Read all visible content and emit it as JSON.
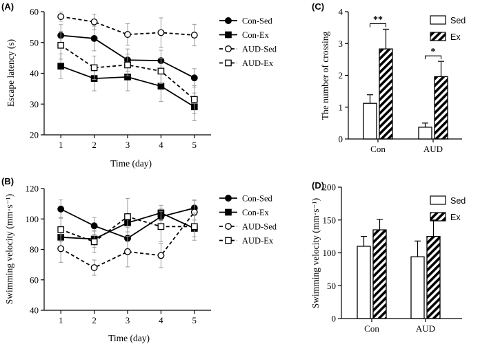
{
  "chart_data": [
    {
      "id": "A",
      "type": "line",
      "panel_label": "(A)",
      "xlabel": "Time (day)",
      "ylabel": "Escape latency (s)",
      "x": [
        1,
        2,
        3,
        4,
        5
      ],
      "xlim": [
        0.5,
        5.5
      ],
      "ylim": [
        20,
        60
      ],
      "yticks": [
        20,
        30,
        40,
        50,
        60
      ],
      "legend_position": "right",
      "series": [
        {
          "name": "Con-Sed",
          "values": [
            52.3,
            51.3,
            44.3,
            44.1,
            38.5
          ],
          "errors": [
            3.5,
            4.0,
            3.6,
            3.4,
            3.0
          ],
          "marker": "filled-circle",
          "line": "solid"
        },
        {
          "name": "Con-Ex",
          "values": [
            42.3,
            38.3,
            38.8,
            35.8,
            29.1
          ],
          "errors": [
            4.0,
            4.0,
            4.5,
            5.0,
            4.5
          ],
          "marker": "filled-square",
          "line": "solid"
        },
        {
          "name": "AUD-Sed",
          "values": [
            58.4,
            56.7,
            52.6,
            53.2,
            52.4
          ],
          "errors": [
            1.5,
            2.5,
            3.5,
            4.8,
            3.5
          ],
          "marker": "open-circle",
          "line": "dashed"
        },
        {
          "name": "AUD-Ex",
          "values": [
            49.1,
            41.8,
            42.7,
            40.7,
            31.5
          ],
          "errors": [
            4.5,
            3.8,
            3.5,
            4.0,
            4.5
          ],
          "marker": "open-square",
          "line": "dashed"
        }
      ]
    },
    {
      "id": "B",
      "type": "line",
      "panel_label": "(B)",
      "xlabel": "Time (day)",
      "ylabel": "Swimming velocity (mm·s⁻¹)",
      "x": [
        1,
        2,
        3,
        4,
        5
      ],
      "xlim": [
        0.5,
        5.5
      ],
      "ylim": [
        40,
        120
      ],
      "yticks": [
        40,
        60,
        80,
        100,
        120
      ],
      "legend_position": "right",
      "series": [
        {
          "name": "Con-Sed",
          "values": [
            106.5,
            95.5,
            87.3,
            101.5,
            107.2
          ],
          "errors": [
            6.0,
            5.5,
            7.0,
            5.5,
            5.0
          ],
          "marker": "filled-circle",
          "line": "solid"
        },
        {
          "name": "Con-Ex",
          "values": [
            88.0,
            86.8,
            97.5,
            104.0,
            93.8
          ],
          "errors": [
            6.0,
            5.5,
            6.0,
            5.0,
            5.5
          ],
          "marker": "filled-square",
          "line": "solid"
        },
        {
          "name": "AUD-Sed",
          "values": [
            80.5,
            68.0,
            78.5,
            76.0,
            104.5
          ],
          "errors": [
            9.0,
            5.0,
            10.0,
            8.0,
            8.0
          ],
          "marker": "open-circle",
          "line": "dashed"
        },
        {
          "name": "AUD-Ex",
          "values": [
            93.0,
            85.0,
            101.5,
            95.0,
            95.0
          ],
          "errors": [
            8.0,
            7.0,
            12.0,
            10.0,
            9.0
          ],
          "marker": "open-square",
          "line": "dashed"
        }
      ]
    },
    {
      "id": "C",
      "type": "bar",
      "panel_label": "(C)",
      "xlabel": "",
      "ylabel": "The number of crossing",
      "categories": [
        "Con",
        "AUD"
      ],
      "ylim": [
        0,
        4
      ],
      "yticks": [
        0,
        1,
        2,
        3,
        4
      ],
      "legend_position": "top-right",
      "series": [
        {
          "name": "Sed",
          "values": [
            1.12,
            0.37
          ],
          "errors": [
            0.27,
            0.13
          ],
          "fill": "white"
        },
        {
          "name": "Ex",
          "values": [
            2.83,
            1.96
          ],
          "errors": [
            0.62,
            0.48
          ],
          "fill": "hatched"
        }
      ],
      "annotations": [
        {
          "category": "Con",
          "text": "**"
        },
        {
          "category": "AUD",
          "text": "*"
        }
      ]
    },
    {
      "id": "D",
      "type": "bar",
      "panel_label": "(D)",
      "xlabel": "",
      "ylabel": "Swimming velocity (mm·s⁻¹)",
      "categories": [
        "Con",
        "AUD"
      ],
      "ylim": [
        0,
        200
      ],
      "yticks": [
        0,
        50,
        100,
        150,
        200
      ],
      "legend_position": "top-right",
      "series": [
        {
          "name": "Sed",
          "values": [
            110,
            94
          ],
          "errors": [
            15,
            24
          ],
          "fill": "white"
        },
        {
          "name": "Ex",
          "values": [
            135,
            125
          ],
          "errors": [
            16,
            25
          ],
          "fill": "hatched"
        }
      ]
    }
  ]
}
